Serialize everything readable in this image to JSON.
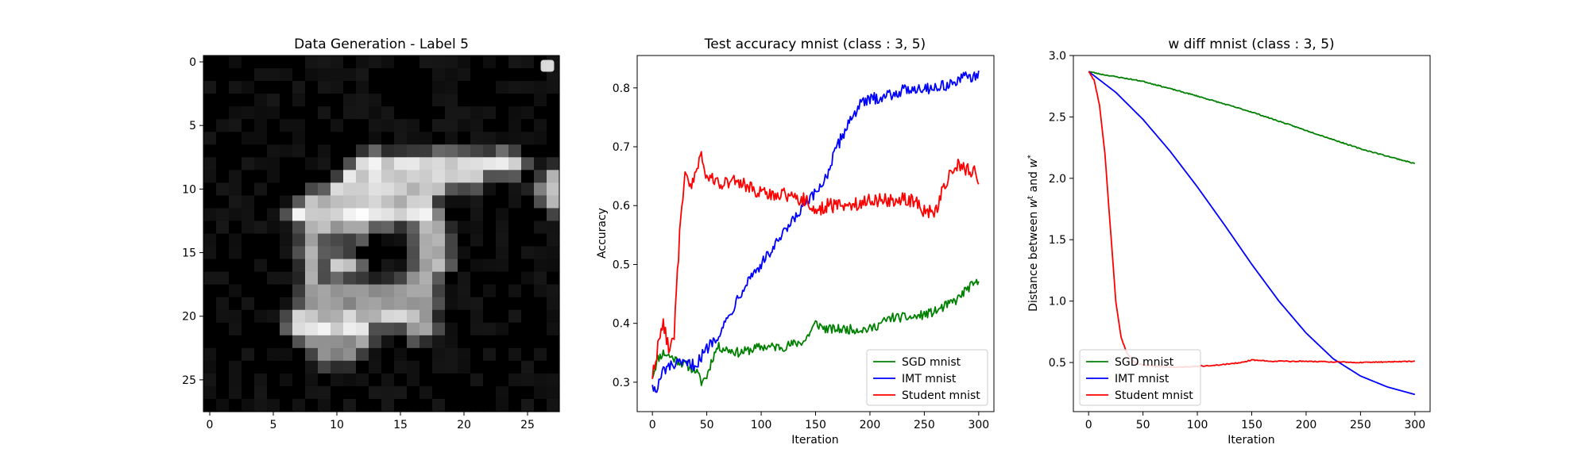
{
  "chart_data": [
    {
      "type": "heatmap",
      "title": "Data Generation - Label 5",
      "colormap": "gray",
      "xlim": [
        -0.5,
        27.5
      ],
      "ylim": [
        27.5,
        -0.5
      ],
      "x_ticks": [
        0,
        5,
        10,
        15,
        20,
        25
      ],
      "y_ticks": [
        0,
        5,
        10,
        15,
        20,
        25
      ],
      "x_tick_labels": [
        "0",
        "5",
        "10",
        "15",
        "20",
        "25"
      ],
      "y_tick_labels": [
        "0",
        "5",
        "10",
        "15",
        "20",
        "25"
      ],
      "grid_rows": 28,
      "grid_cols": 28,
      "strokes": [
        {
          "r0": 8,
          "c0": 12,
          "r1": 8,
          "c1": 24,
          "v": 0.92
        },
        {
          "r0": 9,
          "c0": 11,
          "r1": 9,
          "c1": 21,
          "v": 0.88
        },
        {
          "r0": 10,
          "c0": 10,
          "r1": 10,
          "c1": 18,
          "v": 0.85
        },
        {
          "r0": 11,
          "c0": 8,
          "r1": 11,
          "c1": 17,
          "v": 0.82
        },
        {
          "r0": 12,
          "c0": 7,
          "r1": 12,
          "c1": 17,
          "v": 0.95
        },
        {
          "r0": 13,
          "c0": 8,
          "r1": 13,
          "c1": 12,
          "v": 0.72
        },
        {
          "r0": 13,
          "c0": 17,
          "r1": 16,
          "c1": 18,
          "v": 0.75
        },
        {
          "r0": 14,
          "c0": 8,
          "r1": 19,
          "c1": 8,
          "v": 0.68
        },
        {
          "r0": 16,
          "c0": 10,
          "r1": 16,
          "c1": 11,
          "v": 0.85
        },
        {
          "r0": 17,
          "c0": 16,
          "r1": 21,
          "c1": 17,
          "v": 0.7
        },
        {
          "r0": 18,
          "c0": 9,
          "r1": 19,
          "c1": 15,
          "v": 0.62
        },
        {
          "r0": 20,
          "c0": 7,
          "r1": 20,
          "c1": 16,
          "v": 0.82
        },
        {
          "r0": 21,
          "c0": 7,
          "r1": 21,
          "c1": 12,
          "v": 0.92
        },
        {
          "r0": 22,
          "c0": 8,
          "r1": 22,
          "c1": 12,
          "v": 0.65
        },
        {
          "r0": 23,
          "c0": 9,
          "r1": 23,
          "c1": 11,
          "v": 0.55
        },
        {
          "r0": 9,
          "c0": 27,
          "r1": 11,
          "c1": 27,
          "v": 0.75
        },
        {
          "r0": 10,
          "c0": 26,
          "r1": 10,
          "c1": 26,
          "v": 0.55
        }
      ],
      "legend": {
        "placement": "upper right",
        "entries": []
      }
    },
    {
      "type": "line",
      "title": "Test accuracy mnist (class : 3, 5)",
      "xlabel": "Iteration",
      "ylabel": "Accuracy",
      "xlim": [
        -14,
        314
      ],
      "ylim": [
        0.25,
        0.855
      ],
      "x_ticks": [
        0,
        50,
        100,
        150,
        200,
        250,
        300
      ],
      "x_tick_labels": [
        "0",
        "50",
        "100",
        "150",
        "200",
        "250",
        "300"
      ],
      "y_ticks": [
        0.3,
        0.4,
        0.5,
        0.6,
        0.7,
        0.8
      ],
      "y_tick_labels": [
        "0.3",
        "0.4",
        "0.5",
        "0.6",
        "0.7",
        "0.8"
      ],
      "grid": false,
      "legend": "lower right",
      "series": [
        {
          "name": "SGD mnist",
          "color": "#008000",
          "noise": 0.008,
          "x": [
            0,
            5,
            10,
            20,
            30,
            40,
            45,
            50,
            55,
            60,
            80,
            100,
            120,
            140,
            150,
            160,
            180,
            200,
            220,
            240,
            260,
            280,
            290,
            300
          ],
          "y": [
            0.31,
            0.34,
            0.35,
            0.34,
            0.33,
            0.32,
            0.3,
            0.31,
            0.34,
            0.36,
            0.35,
            0.36,
            0.36,
            0.37,
            0.4,
            0.39,
            0.39,
            0.39,
            0.41,
            0.41,
            0.42,
            0.44,
            0.46,
            0.47
          ]
        },
        {
          "name": "IMT mnist",
          "color": "#0000ff",
          "noise": 0.01,
          "x": [
            0,
            3,
            10,
            20,
            40,
            55,
            60,
            70,
            80,
            90,
            100,
            120,
            140,
            150,
            160,
            170,
            180,
            190,
            200,
            220,
            240,
            260,
            280,
            290,
            300
          ],
          "y": [
            0.3,
            0.28,
            0.32,
            0.33,
            0.33,
            0.37,
            0.38,
            0.41,
            0.45,
            0.48,
            0.5,
            0.55,
            0.6,
            0.62,
            0.65,
            0.7,
            0.74,
            0.77,
            0.78,
            0.79,
            0.8,
            0.8,
            0.81,
            0.82,
            0.82
          ]
        },
        {
          "name": "Student mnist",
          "color": "#ff0000",
          "noise": 0.012,
          "x": [
            0,
            5,
            10,
            15,
            20,
            25,
            30,
            35,
            40,
            45,
            50,
            60,
            80,
            100,
            120,
            140,
            150,
            160,
            180,
            200,
            220,
            240,
            250,
            260,
            270,
            280,
            290,
            295,
            300
          ],
          "y": [
            0.31,
            0.36,
            0.4,
            0.36,
            0.38,
            0.55,
            0.65,
            0.63,
            0.66,
            0.68,
            0.65,
            0.64,
            0.64,
            0.62,
            0.62,
            0.61,
            0.59,
            0.6,
            0.6,
            0.61,
            0.61,
            0.61,
            0.59,
            0.59,
            0.64,
            0.67,
            0.66,
            0.66,
            0.64
          ]
        }
      ]
    },
    {
      "type": "line",
      "title": "w diff mnist (class : 3, 5)",
      "xlabel": "Iteration",
      "ylabel": "Distance between w^t and w^*",
      "ylabel_parts": {
        "prefix": "Distance between ",
        "symbol1": "w",
        "sup1": "t",
        "middle": " and ",
        "symbol2": "w",
        "sup2": "*"
      },
      "xlim": [
        -14,
        314
      ],
      "ylim": [
        0.1,
        3.0
      ],
      "x_ticks": [
        0,
        50,
        100,
        150,
        200,
        250,
        300
      ],
      "x_tick_labels": [
        "0",
        "50",
        "100",
        "150",
        "200",
        "250",
        "300"
      ],
      "y_ticks": [
        0.5,
        1.0,
        1.5,
        2.0,
        2.5,
        3.0
      ],
      "y_tick_labels": [
        "0.5",
        "1.0",
        "1.5",
        "2.0",
        "2.5",
        "3.0"
      ],
      "grid": false,
      "legend": "lower left",
      "series": [
        {
          "name": "SGD mnist",
          "color": "#008000",
          "noise": 0.004,
          "x": [
            0,
            10,
            50,
            100,
            150,
            200,
            250,
            300
          ],
          "y": [
            2.87,
            2.85,
            2.79,
            2.67,
            2.54,
            2.39,
            2.24,
            2.12
          ]
        },
        {
          "name": "IMT mnist",
          "color": "#0000ff",
          "noise": 0.0,
          "x": [
            0,
            25,
            50,
            75,
            100,
            125,
            150,
            175,
            200,
            225,
            250,
            275,
            300
          ],
          "y": [
            2.87,
            2.7,
            2.48,
            2.22,
            1.93,
            1.62,
            1.3,
            1.0,
            0.74,
            0.53,
            0.39,
            0.3,
            0.24
          ]
        },
        {
          "name": "Student mnist",
          "color": "#ff0000",
          "noise": 0.004,
          "x": [
            0,
            5,
            10,
            15,
            20,
            25,
            30,
            35,
            40,
            45,
            50,
            60,
            80,
            100,
            120,
            140,
            150,
            170,
            200,
            250,
            300
          ],
          "y": [
            2.87,
            2.8,
            2.6,
            2.2,
            1.6,
            1.0,
            0.7,
            0.58,
            0.52,
            0.49,
            0.48,
            0.47,
            0.46,
            0.47,
            0.48,
            0.5,
            0.52,
            0.51,
            0.51,
            0.5,
            0.51
          ]
        }
      ]
    }
  ]
}
